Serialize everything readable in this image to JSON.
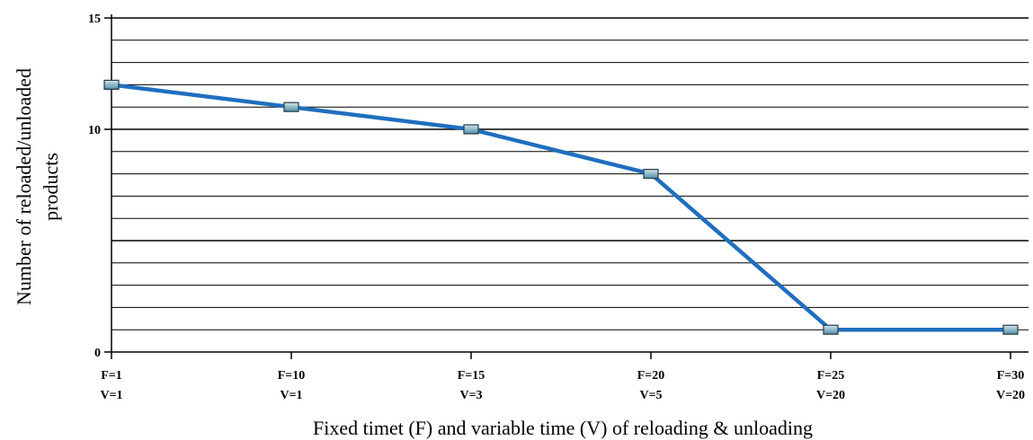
{
  "chart_data": {
    "type": "line",
    "title": "",
    "xlabel": "Fixed timet (F) and variable time (V) of reloading & unloading",
    "ylabel_lines": [
      "Number of reloaded/unloaded",
      "products"
    ],
    "categories": [
      [
        "F=1",
        "V=1"
      ],
      [
        "F=10",
        "V=1"
      ],
      [
        "F=15",
        "V=3"
      ],
      [
        "F=20",
        "V=5"
      ],
      [
        "F=25",
        "V=20"
      ],
      [
        "F=30",
        "V=20"
      ]
    ],
    "series": [
      {
        "values": [
          12,
          11,
          10,
          8,
          1,
          1
        ]
      }
    ],
    "ylim": [
      0,
      15
    ],
    "yticks": [
      0,
      10,
      15
    ],
    "grid": true,
    "grid_step": 1,
    "colors": {
      "line": "#1f6fbf",
      "marker_fill": "#7fb2c8",
      "marker_stroke": "#2a3a44",
      "grid": "#000000"
    }
  }
}
